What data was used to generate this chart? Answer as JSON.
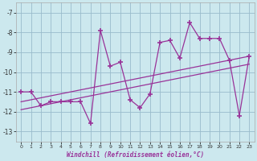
{
  "x_values": [
    0,
    1,
    2,
    3,
    4,
    5,
    6,
    7,
    8,
    9,
    10,
    11,
    12,
    13,
    14,
    15,
    16,
    17,
    18,
    19,
    20,
    21,
    22,
    23
  ],
  "y_values": [
    -11.0,
    -11.0,
    -11.7,
    -11.5,
    -11.5,
    -11.5,
    -11.5,
    -12.6,
    -7.9,
    -9.7,
    -9.5,
    -11.4,
    -11.8,
    -11.1,
    -8.5,
    -8.4,
    -9.3,
    -7.5,
    -8.3,
    -8.3,
    -8.3,
    -9.4,
    -12.2,
    -9.2
  ],
  "line_color": "#993399",
  "bg_color": "#cce8ee",
  "grid_color": "#99bbcc",
  "xlabel": "Windchill (Refroidissement éolien,°C)",
  "ylim": [
    -13.5,
    -6.5
  ],
  "xlim": [
    -0.5,
    23.5
  ],
  "yticks": [
    -7,
    -8,
    -9,
    -10,
    -11,
    -12,
    -13
  ],
  "xticks": [
    0,
    1,
    2,
    3,
    4,
    5,
    6,
    7,
    8,
    9,
    10,
    11,
    12,
    13,
    14,
    15,
    16,
    17,
    18,
    19,
    20,
    21,
    22,
    23
  ],
  "trend1_x": [
    0,
    23
  ],
  "trend1_y": [
    -11.5,
    -9.2
  ],
  "trend2_x": [
    0,
    23
  ],
  "trend2_y": [
    -11.9,
    -9.6
  ]
}
